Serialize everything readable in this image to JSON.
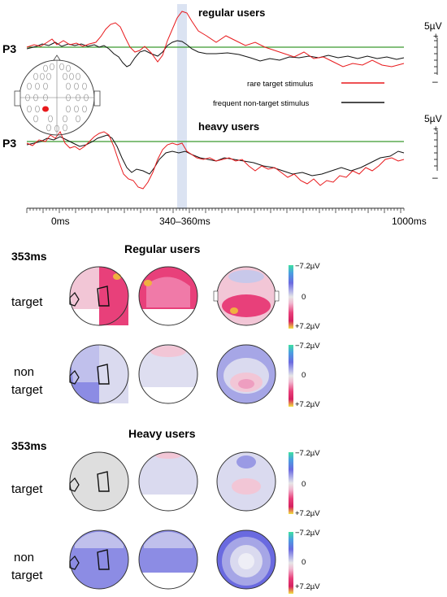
{
  "erp": {
    "electrode": "P3",
    "panels": [
      {
        "title": "regular users",
        "label": "P3"
      },
      {
        "title": "heavy users",
        "label": "P3"
      }
    ],
    "scale_label": "5µV",
    "scale_plus": "+",
    "scale_minus": "–",
    "legend": [
      {
        "label": "rare target stimulus",
        "color": "#e8191c"
      },
      {
        "label": "frequent non-target stimulus",
        "color": "#111111"
      }
    ],
    "baseline_color": "#3a9a2f",
    "time_axis": {
      "start": "0ms",
      "window": "340–360ms",
      "end": "1000ms"
    },
    "highlight_window_ms": [
      340,
      360
    ]
  },
  "topomaps": {
    "timestamp": "353ms",
    "scale": {
      "top": "−7.2µV",
      "mid": "0",
      "bottom": "+7.2µV"
    },
    "groups": [
      {
        "title": "Regular users",
        "rows": [
          "target",
          "non\ntarget"
        ]
      },
      {
        "title": "Heavy users",
        "rows": [
          "target",
          "non\ntarget"
        ]
      }
    ]
  }
}
